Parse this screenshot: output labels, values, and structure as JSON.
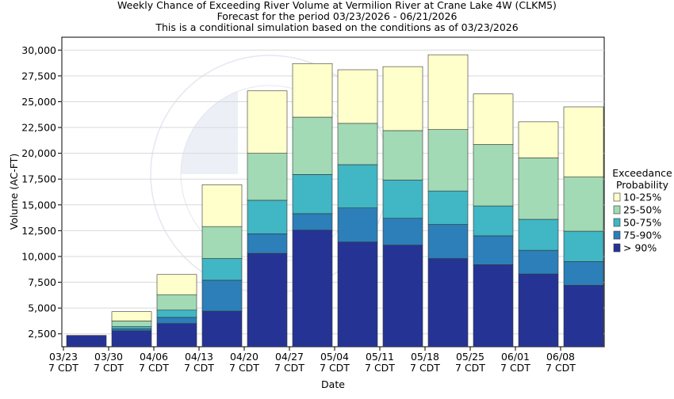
{
  "chart_data": {
    "type": "bar",
    "stacked": true,
    "title": "Weekly Chance of Exceeding River Volume at Vermilion River at Crane Lake 4W (CLKM5)",
    "subtitle1": "Forecast for the period 03/23/2026 - 06/21/2026",
    "subtitle2": "This is a conditional simulation based on the conditions as of 03/23/2026",
    "xlabel": "Date",
    "ylabel": "Volume (AC-FT)",
    "ylim": [
      1250,
      31250
    ],
    "yticks": [
      2500,
      5000,
      7500,
      10000,
      12500,
      15000,
      17500,
      20000,
      22500,
      25000,
      27500,
      30000
    ],
    "ytick_labels": [
      "2,500",
      "5,000",
      "7,500",
      "10,000",
      "12,500",
      "15,000",
      "17,500",
      "20,000",
      "22,500",
      "25,000",
      "27,500",
      "30,000"
    ],
    "categories": [
      "03/23",
      "03/30",
      "04/06",
      "04/13",
      "04/20",
      "04/27",
      "05/04",
      "05/11",
      "05/18",
      "05/25",
      "06/01",
      "06/08"
    ],
    "category_sublabel": "7 CDT",
    "legend_title_line1": "Exceedance",
    "legend_title_line2": "Probability",
    "series": [
      {
        "name": "> 90%",
        "color": "#253494",
        "top": [
          2350,
          2800,
          3500,
          4700,
          10300,
          12550,
          11400,
          11100,
          9800,
          9200,
          8300,
          7200
        ]
      },
      {
        "name": "75-90%",
        "color": "#2c7fb8",
        "top": [
          2350,
          3000,
          4100,
          7700,
          12200,
          14150,
          14700,
          13700,
          13100,
          12000,
          10600,
          9500
        ]
      },
      {
        "name": "50-75%",
        "color": "#41b6c4",
        "top": [
          2350,
          3200,
          4800,
          9800,
          15450,
          17950,
          18900,
          17400,
          16350,
          14900,
          13600,
          12450
        ]
      },
      {
        "name": "25-50%",
        "color": "#a1dab4",
        "top": [
          2350,
          3750,
          6300,
          12900,
          20000,
          23500,
          22900,
          22200,
          22300,
          20850,
          19550,
          17700
        ]
      },
      {
        "name": "10-25%",
        "color": "#ffffcc",
        "top": [
          2350,
          4650,
          8250,
          16950,
          26050,
          28700,
          28100,
          28400,
          29550,
          25750,
          23050,
          24500
        ]
      }
    ],
    "legend_order": [
      "10-25%",
      "25-50%",
      "50-75%",
      "75-90%",
      "> 90%"
    ]
  }
}
